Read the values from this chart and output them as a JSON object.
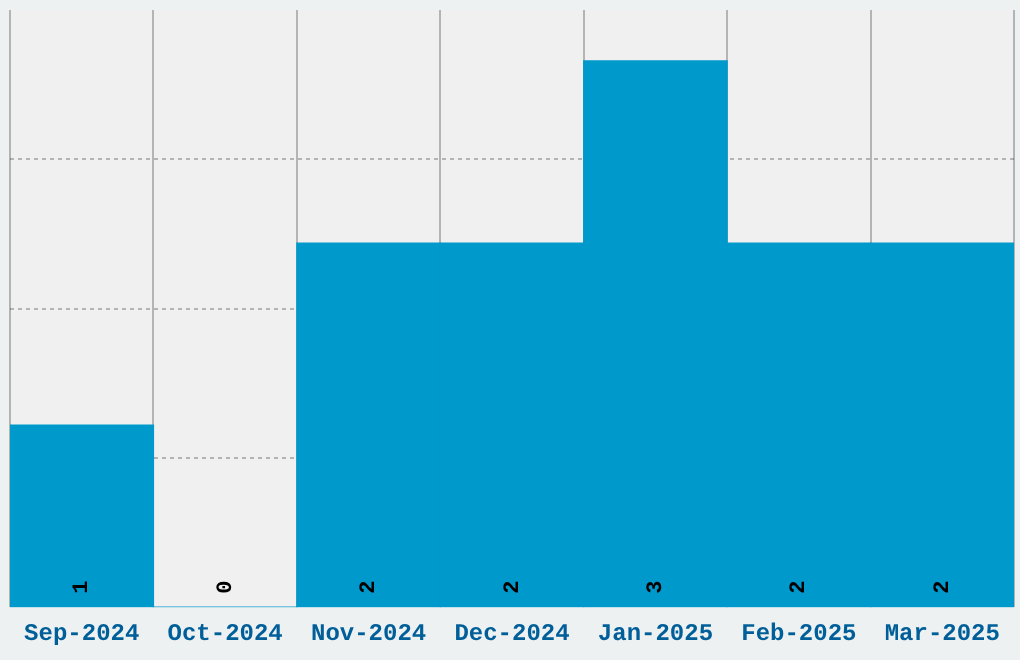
{
  "chart_data": {
    "type": "bar",
    "categories": [
      "Sep-2024",
      "Oct-2024",
      "Nov-2024",
      "Dec-2024",
      "Jan-2025",
      "Feb-2025",
      "Mar-2025"
    ],
    "values": [
      1,
      0,
      2,
      2,
      3,
      2,
      2
    ],
    "color": "#0099cc",
    "relative": false,
    "ylim": [
      0,
      3.28
    ],
    "yticks": [
      {
        "value": 0.82,
        "label": null
      },
      {
        "value": 1.64,
        "label": null
      },
      {
        "value": 2.46,
        "label": null
      }
    ],
    "tick_labels": "x",
    "grid": true,
    "data_labels": true,
    "legend": false
  }
}
